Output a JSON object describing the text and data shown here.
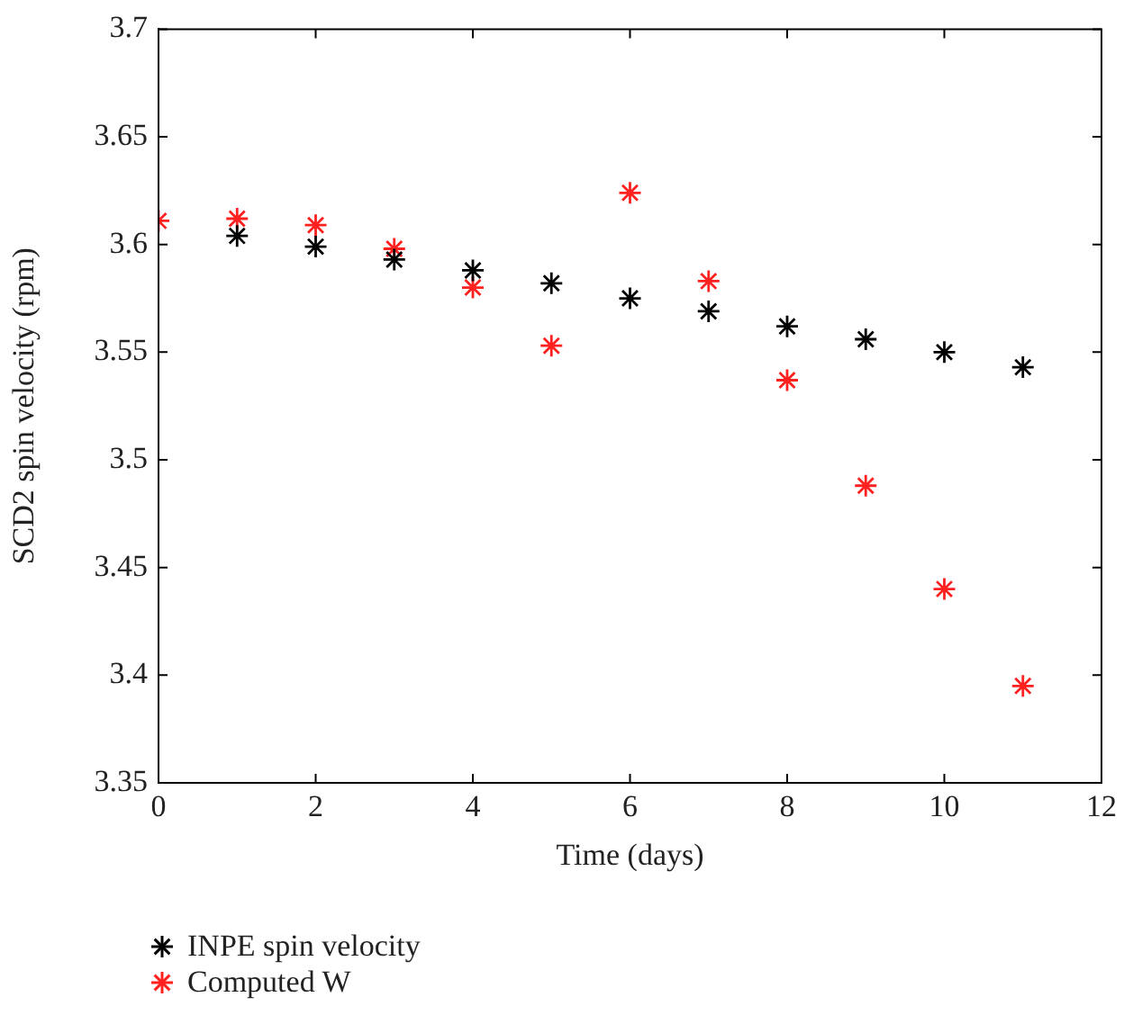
{
  "chart_data": {
    "type": "scatter",
    "xlabel": "Time (days)",
    "ylabel": "SCD2 spin velocity (rpm)",
    "x": [
      0,
      1,
      2,
      3,
      4,
      5,
      6,
      7,
      8,
      9,
      10,
      11
    ],
    "series": [
      {
        "name": "INPE spin velocity",
        "color": "#000000",
        "values": [
          null,
          3.604,
          3.599,
          3.593,
          3.588,
          3.582,
          3.575,
          3.569,
          3.562,
          3.556,
          3.55,
          3.543
        ]
      },
      {
        "name": "Computed W",
        "color": "#ff2020",
        "values": [
          3.611,
          3.612,
          3.609,
          3.598,
          3.58,
          3.553,
          3.624,
          3.583,
          3.537,
          3.488,
          3.44,
          3.395
        ]
      }
    ],
    "xlim": [
      0,
      12
    ],
    "xticks": [
      0,
      2,
      4,
      6,
      8,
      10,
      12
    ],
    "ylim": [
      3.35,
      3.7
    ],
    "yticks": [
      3.35,
      3.4,
      3.45,
      3.5,
      3.55,
      3.6,
      3.65,
      3.7
    ],
    "grid": false,
    "legend": "bottom left",
    "marker": "cross"
  }
}
